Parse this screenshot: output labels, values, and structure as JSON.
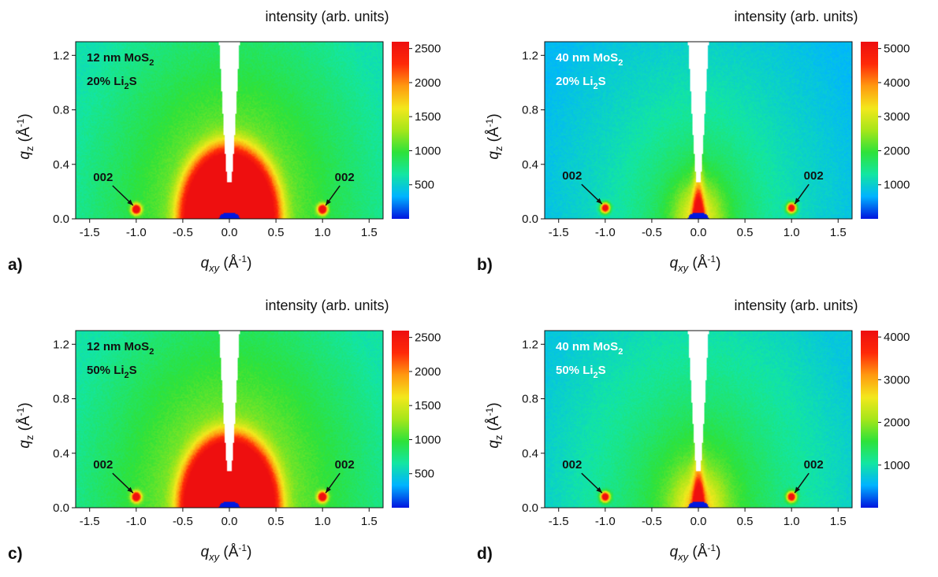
{
  "figure": {
    "colorbar_title": "intensity (arb. units)",
    "xlabel_main": "q",
    "xlabel_sub": "xy",
    "xlabel_unit": "(Å",
    "xlabel_exp": "-1",
    "xlabel_close": ")",
    "ylabel_main": "q",
    "ylabel_sub": "z",
    "ylabel_unit": "(Å",
    "ylabel_exp": "-1",
    "ylabel_close": ")",
    "peak_label": "002"
  },
  "colors": {
    "colormap": [
      "#0018e0",
      "#00b4ff",
      "#13e6a2",
      "#2ee23a",
      "#a6e61a",
      "#f3e81c",
      "#ff9a10",
      "#ff2a08",
      "#ee0f0f"
    ],
    "arrow": "#111111",
    "film_label_dark": "#111111",
    "film_label_light": "#ffffff"
  },
  "chart_data": [
    {
      "type": "heatmap",
      "panel_label": "a)",
      "film_label": {
        "line1_main": "12 nm MoS",
        "line1_sub": "2",
        "line2_main": "20% Li",
        "line2_sub": "2",
        "line2_tail": "S"
      },
      "label_color": "dark",
      "xlim": [
        -1.65,
        1.65
      ],
      "ylim": [
        0.0,
        1.3
      ],
      "x_ticks": [
        "-1.5",
        "-1.0",
        "-0.5",
        "0.0",
        "0.5",
        "1.0",
        "1.5"
      ],
      "x_tick_values": [
        -1.5,
        -1.0,
        -0.5,
        0.0,
        0.5,
        1.0,
        1.5
      ],
      "y_ticks": [
        "0.0",
        "0.4",
        "0.8",
        "1.2"
      ],
      "y_tick_values": [
        0.0,
        0.4,
        0.8,
        1.2
      ],
      "colorbar_range": [
        0,
        2600
      ],
      "colorbar_ticks": [
        "500",
        "1000",
        "1500",
        "2000",
        "2500"
      ],
      "colorbar_tick_values": [
        500,
        1000,
        1500,
        2000,
        2500
      ],
      "background_intensity": 1150,
      "central_peak_intensity": 2600,
      "bragg_peak_intensity": 2600,
      "peaks": [
        {
          "q_xy": -1.0,
          "q_z": 0.07
        },
        {
          "q_xy": 1.0,
          "q_z": 0.07
        }
      ],
      "peak_index": "002"
    },
    {
      "type": "heatmap",
      "panel_label": "b)",
      "film_label": {
        "line1_main": "40 nm MoS",
        "line1_sub": "2",
        "line2_main": "20% Li",
        "line2_sub": "2",
        "line2_tail": "S"
      },
      "label_color": "light",
      "xlim": [
        -1.65,
        1.65
      ],
      "ylim": [
        0.0,
        1.3
      ],
      "x_ticks": [
        "-1.5",
        "-1.0",
        "-0.5",
        "0.0",
        "0.5",
        "1.0",
        "1.5"
      ],
      "x_tick_values": [
        -1.5,
        -1.0,
        -0.5,
        0.0,
        0.5,
        1.0,
        1.5
      ],
      "y_ticks": [
        "0.0",
        "0.4",
        "0.8",
        "1.2"
      ],
      "y_tick_values": [
        0.0,
        0.4,
        0.8,
        1.2
      ],
      "colorbar_range": [
        0,
        5200
      ],
      "colorbar_ticks": [
        "1000",
        "2000",
        "3000",
        "4000",
        "5000"
      ],
      "colorbar_tick_values": [
        1000,
        2000,
        3000,
        4000,
        5000
      ],
      "background_intensity": 1400,
      "central_peak_intensity": 5200,
      "bragg_peak_intensity": 5200,
      "peaks": [
        {
          "q_xy": -1.0,
          "q_z": 0.08
        },
        {
          "q_xy": 1.0,
          "q_z": 0.08
        }
      ],
      "peak_index": "002"
    },
    {
      "type": "heatmap",
      "panel_label": "c)",
      "film_label": {
        "line1_main": "12 nm MoS",
        "line1_sub": "2",
        "line2_main": "50% Li",
        "line2_sub": "2",
        "line2_tail": "S"
      },
      "label_color": "dark",
      "xlim": [
        -1.65,
        1.65
      ],
      "ylim": [
        0.0,
        1.3
      ],
      "x_ticks": [
        "-1.5",
        "-1.0",
        "-0.5",
        "0.0",
        "0.5",
        "1.0",
        "1.5"
      ],
      "x_tick_values": [
        -1.5,
        -1.0,
        -0.5,
        0.0,
        0.5,
        1.0,
        1.5
      ],
      "y_ticks": [
        "0.0",
        "0.4",
        "0.8",
        "1.2"
      ],
      "y_tick_values": [
        0.0,
        0.4,
        0.8,
        1.2
      ],
      "colorbar_range": [
        0,
        2600
      ],
      "colorbar_ticks": [
        "500",
        "1000",
        "1500",
        "2000",
        "2500"
      ],
      "colorbar_tick_values": [
        500,
        1000,
        1500,
        2000,
        2500
      ],
      "background_intensity": 1200,
      "central_peak_intensity": 2600,
      "bragg_peak_intensity": 2600,
      "peaks": [
        {
          "q_xy": -1.0,
          "q_z": 0.08
        },
        {
          "q_xy": 1.0,
          "q_z": 0.08
        }
      ],
      "peak_index": "002"
    },
    {
      "type": "heatmap",
      "panel_label": "d)",
      "film_label": {
        "line1_main": "40 nm MoS",
        "line1_sub": "2",
        "line2_main": "50% Li",
        "line2_sub": "2",
        "line2_tail": "S"
      },
      "label_color": "light",
      "xlim": [
        -1.65,
        1.65
      ],
      "ylim": [
        0.0,
        1.3
      ],
      "x_ticks": [
        "-1.5",
        "-1.0",
        "-0.5",
        "0.0",
        "0.5",
        "1.0",
        "1.5"
      ],
      "x_tick_values": [
        -1.5,
        -1.0,
        -0.5,
        0.0,
        0.5,
        1.0,
        1.5
      ],
      "y_ticks": [
        "0.0",
        "0.4",
        "0.8",
        "1.2"
      ],
      "y_tick_values": [
        0.0,
        0.4,
        0.8,
        1.2
      ],
      "colorbar_range": [
        0,
        4150
      ],
      "colorbar_ticks": [
        "1000",
        "2000",
        "3000",
        "4000"
      ],
      "colorbar_tick_values": [
        1000,
        2000,
        3000,
        4000
      ],
      "background_intensity": 1350,
      "central_peak_intensity": 4150,
      "bragg_peak_intensity": 4150,
      "peaks": [
        {
          "q_xy": -1.0,
          "q_z": 0.08
        },
        {
          "q_xy": 1.0,
          "q_z": 0.08
        }
      ],
      "peak_index": "002"
    }
  ]
}
